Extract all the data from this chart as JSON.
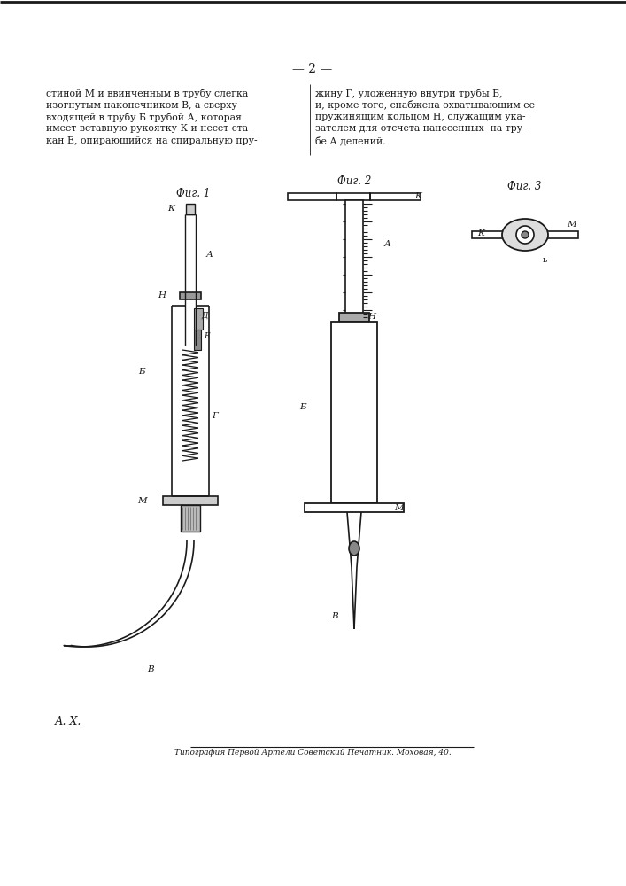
{
  "bg_color": "#ffffff",
  "line_color": "#1a1a1a",
  "text_color": "#1a1a1a",
  "page_num": "— 2 —",
  "para_left": "стиной М и ввинченным в трубу слегка\nизогнутым наконечником В, а сверху\nвходящей в трубу Б трубой А, которая\nимеет вставную рукоятку К и несет ста-\nкан Е, опирающийся на спиральную пру-",
  "para_right": "жину Г, уложенную внутри трубы Б,\nи, кроме того, снабжена охватывающим ее\nпружинящим кольцом Н, служащим ука-\nзателем для отсчета нанесенных  на тру-\nбе А делений.",
  "fig1_label": "Фиг. 1",
  "fig2_label": "Фиг. 2",
  "fig3_label": "Фиг. 3",
  "bottom_text": "Типография Первой Артели Советский Печатник. Моховая, 40.",
  "footer_label": "А. Х."
}
